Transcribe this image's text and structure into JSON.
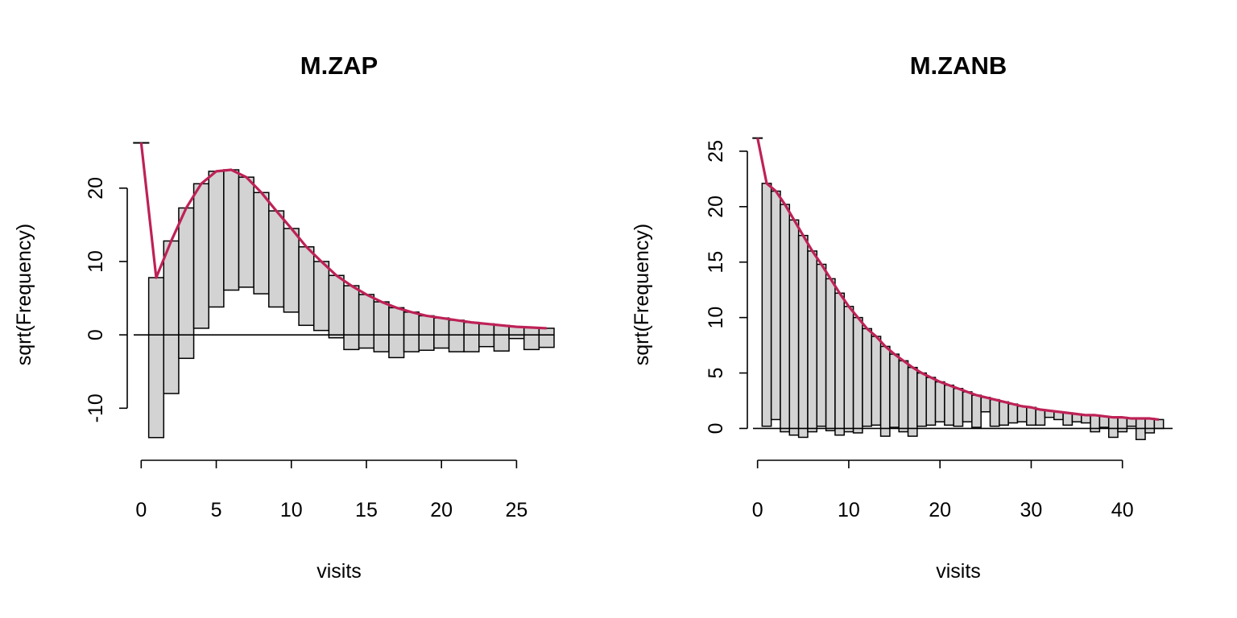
{
  "chart_data": [
    {
      "type": "bar",
      "subtype": "hanging-rootogram",
      "title": "M.ZAP",
      "xlabel": "visits",
      "ylabel": "sqrt(Frequency)",
      "x_ticks": [
        0,
        5,
        10,
        15,
        20,
        25
      ],
      "y_ticks": [
        -10,
        0,
        10,
        20
      ],
      "xlim": [
        -0.5,
        27.5
      ],
      "ylim": [
        -16,
        27
      ],
      "grid": false,
      "fit_color": "#be2157",
      "x": [
        0,
        1,
        2,
        3,
        4,
        5,
        6,
        7,
        8,
        9,
        10,
        11,
        12,
        13,
        14,
        15,
        16,
        17,
        18,
        19,
        20,
        21,
        22,
        23,
        24,
        25,
        26,
        27
      ],
      "expected_sqrt": [
        26.2,
        7.8,
        12.8,
        17.3,
        20.6,
        22.3,
        22.5,
        21.5,
        19.4,
        16.9,
        14.5,
        12.0,
        10.0,
        8.1,
        6.7,
        5.5,
        4.5,
        3.7,
        3.1,
        2.6,
        2.3,
        2.0,
        1.7,
        1.5,
        1.3,
        1.1,
        1.0,
        0.9
      ],
      "bar_bottom": [
        26.2,
        -14.0,
        -8.0,
        -3.2,
        0.9,
        3.8,
        6.1,
        6.5,
        5.6,
        3.8,
        3.1,
        1.3,
        0.6,
        -0.4,
        -2.0,
        -1.8,
        -2.3,
        -3.1,
        -2.3,
        -2.1,
        -1.8,
        -2.3,
        -2.3,
        -1.6,
        -2.2,
        -0.5,
        -2.0,
        -1.7
      ]
    },
    {
      "type": "bar",
      "subtype": "hanging-rootogram",
      "title": "M.ZANB",
      "xlabel": "visits",
      "ylabel": "sqrt(Frequency)",
      "x_ticks": [
        0,
        10,
        20,
        30,
        40
      ],
      "y_ticks": [
        0,
        5,
        10,
        15,
        20,
        25
      ],
      "xlim": [
        -0.5,
        45.5
      ],
      "ylim": [
        -2,
        26.3
      ],
      "grid": false,
      "fit_color": "#be2157",
      "x": [
        0,
        1,
        2,
        3,
        4,
        5,
        6,
        7,
        8,
        9,
        10,
        11,
        12,
        13,
        14,
        15,
        16,
        17,
        18,
        19,
        20,
        21,
        22,
        23,
        24,
        25,
        26,
        27,
        28,
        29,
        30,
        31,
        32,
        33,
        34,
        35,
        36,
        37,
        38,
        39,
        40,
        41,
        42,
        43,
        44
      ],
      "expected_sqrt": [
        26.2,
        22.1,
        21.4,
        20.2,
        18.8,
        17.4,
        16.0,
        14.8,
        13.5,
        12.2,
        11.0,
        10.0,
        9.0,
        8.3,
        7.4,
        6.7,
        6.1,
        5.5,
        5.0,
        4.6,
        4.2,
        3.9,
        3.6,
        3.3,
        3.0,
        2.8,
        2.6,
        2.4,
        2.2,
        2.0,
        1.9,
        1.7,
        1.6,
        1.5,
        1.4,
        1.3,
        1.2,
        1.2,
        1.1,
        1.0,
        1.0,
        0.9,
        0.9,
        0.9,
        0.8
      ],
      "bar_bottom": [
        26.2,
        0.2,
        0.8,
        -0.3,
        -0.6,
        -0.8,
        -0.3,
        0.2,
        -0.2,
        -0.6,
        -0.3,
        -0.4,
        0.2,
        0.3,
        -0.7,
        0.1,
        -0.3,
        -0.7,
        0.2,
        0.3,
        0.6,
        0.3,
        0.2,
        0.6,
        0.1,
        1.5,
        0.2,
        0.3,
        0.5,
        0.6,
        0.3,
        0.3,
        1.0,
        0.8,
        0.3,
        0.6,
        0.5,
        -0.3,
        0.1,
        -0.8,
        -0.3,
        0.2,
        -1.0,
        -0.4,
        0.0
      ]
    }
  ]
}
